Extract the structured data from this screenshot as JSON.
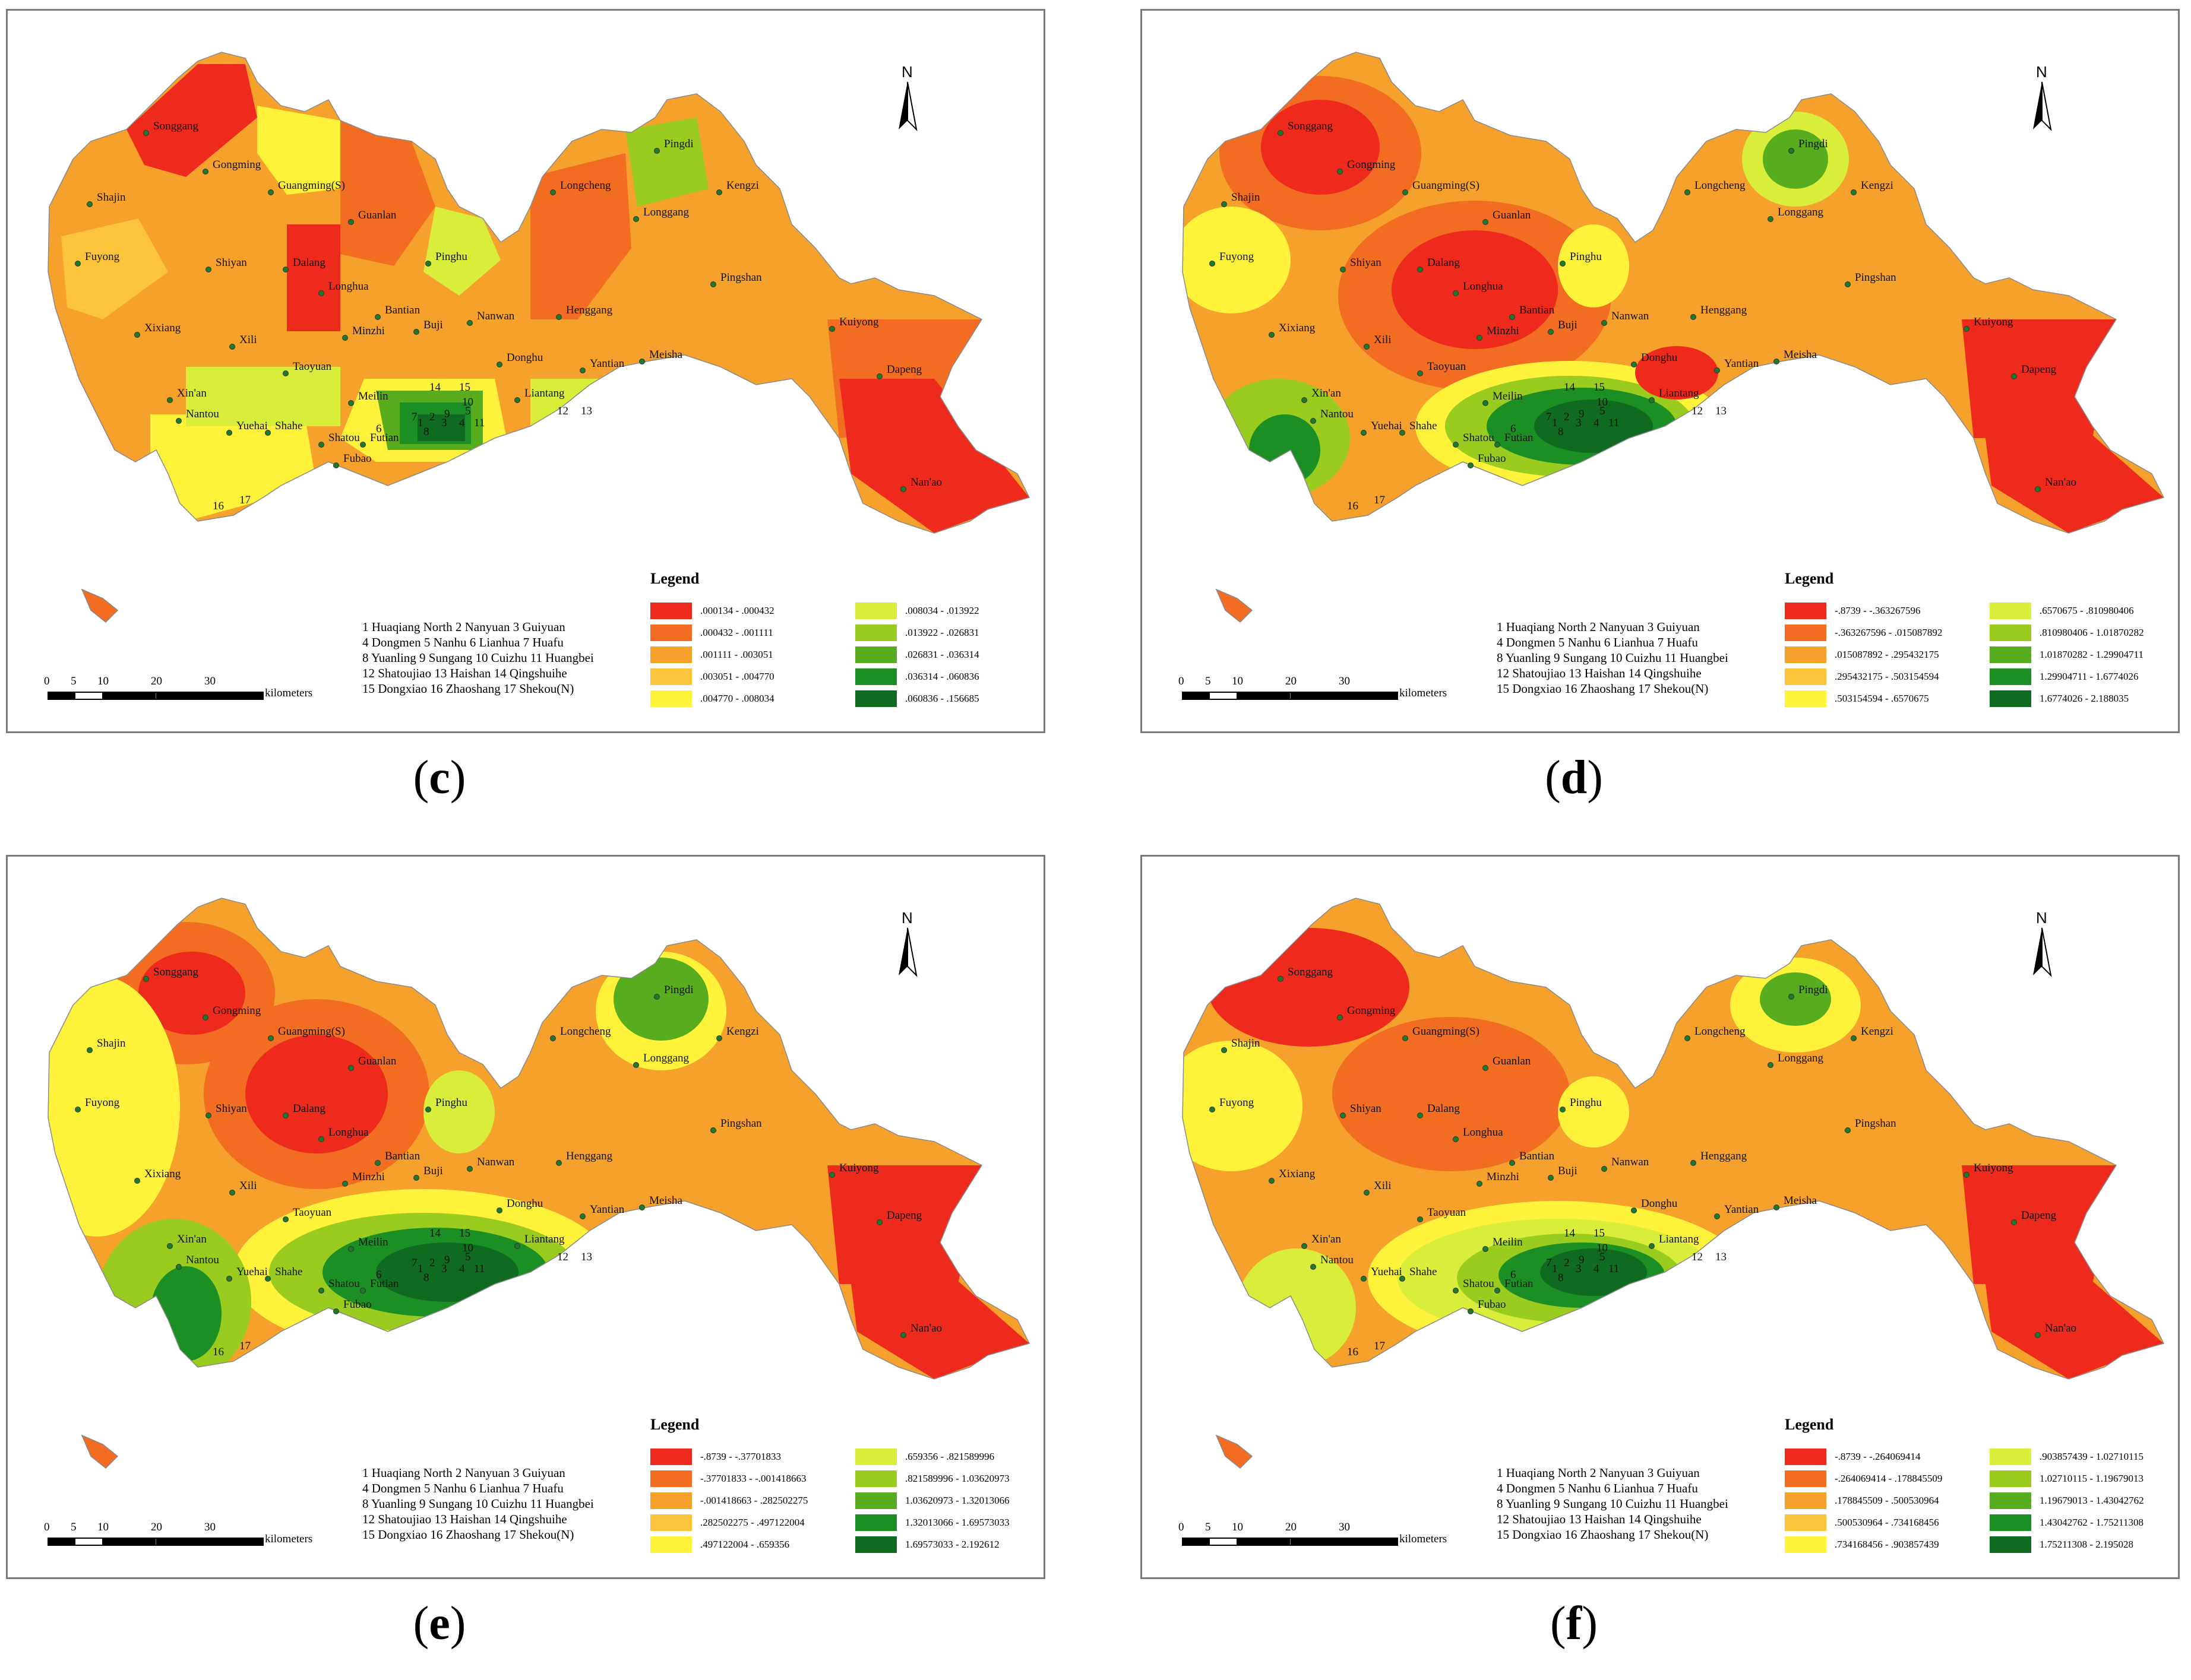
{
  "panels": [
    {
      "id": "c",
      "label": "c",
      "legend_title": "Legend",
      "legend_items": [
        {
          "range": ".000134  -  .000432",
          "color": "#ee2a1c"
        },
        {
          "range": ".000432  -  .001111",
          "color": "#f26d21"
        },
        {
          "range": ".001111  -  .003051",
          "color": "#f5a12c"
        },
        {
          "range": ".003051  -  .004770",
          "color": "#fcc43a"
        },
        {
          "range": ".004770  -  .008034",
          "color": "#fef23a"
        },
        {
          "range": ".008034  -  .013922",
          "color": "#d9ee3a"
        },
        {
          "range": ".013922  -  .026831",
          "color": "#99cc1e"
        },
        {
          "range": ".026831  -  .036314",
          "color": "#57ad1e"
        },
        {
          "range": ".036314  -  .060836",
          "color": "#1c8f24"
        },
        {
          "range": ".060836  -  .156685",
          "color": "#0e6b1f"
        }
      ]
    },
    {
      "id": "d",
      "label": "d",
      "legend_title": "Legend",
      "legend_items": [
        {
          "range": "-.8739  -  -.363267596",
          "color": "#ee2a1c"
        },
        {
          "range": "-.363267596  -  .015087892",
          "color": "#f26d21"
        },
        {
          "range": ".015087892  -  .295432175",
          "color": "#f5a12c"
        },
        {
          "range": ".295432175  -  .503154594",
          "color": "#fcc43a"
        },
        {
          "range": ".503154594  -  .6570675",
          "color": "#fef23a"
        },
        {
          "range": ".6570675  -  .810980406",
          "color": "#d9ee3a"
        },
        {
          "range": ".810980406  -  1.01870282",
          "color": "#99cc1e"
        },
        {
          "range": "1.01870282  -  1.29904711",
          "color": "#57ad1e"
        },
        {
          "range": "1.29904711  -  1.6774026",
          "color": "#1c8f24"
        },
        {
          "range": "1.6774026  -  2.188035",
          "color": "#0e6b1f"
        }
      ]
    },
    {
      "id": "e",
      "label": "e",
      "legend_title": "Legend",
      "legend_items": [
        {
          "range": "-.8739  -  -.37701833",
          "color": "#ee2a1c"
        },
        {
          "range": "-.37701833  -  -.001418663",
          "color": "#f26d21"
        },
        {
          "range": "-.001418663  -  .282502275",
          "color": "#f5a12c"
        },
        {
          "range": ".282502275  -  .497122004",
          "color": "#fcc43a"
        },
        {
          "range": ".497122004  -  .659356",
          "color": "#fef23a"
        },
        {
          "range": ".659356  -  .821589996",
          "color": "#d9ee3a"
        },
        {
          "range": ".821589996  -  1.03620973",
          "color": "#99cc1e"
        },
        {
          "range": "1.03620973  -  1.32013066",
          "color": "#57ad1e"
        },
        {
          "range": "1.32013066  -  1.69573033",
          "color": "#1c8f24"
        },
        {
          "range": "1.69573033  -  2.192612",
          "color": "#0e6b1f"
        }
      ]
    },
    {
      "id": "f",
      "label": "f",
      "legend_title": "Legend",
      "legend_items": [
        {
          "range": "-.8739  -  -.264069414",
          "color": "#ee2a1c"
        },
        {
          "range": "-.264069414  -  .178845509",
          "color": "#f26d21"
        },
        {
          "range": ".178845509  -  .500530964",
          "color": "#f5a12c"
        },
        {
          "range": ".500530964  -  .734168456",
          "color": "#fcc43a"
        },
        {
          "range": ".734168456  -  .903857439",
          "color": "#fef23a"
        },
        {
          "range": ".903857439  -  1.02710115",
          "color": "#d9ee3a"
        },
        {
          "range": "1.02710115  -  1.19679013",
          "color": "#99cc1e"
        },
        {
          "range": "1.19679013  -  1.43042762",
          "color": "#57ad1e"
        },
        {
          "range": "1.43042762  -  1.75211308",
          "color": "#1c8f24"
        },
        {
          "range": "1.75211308  -  2.195028",
          "color": "#0e6b1f"
        }
      ]
    }
  ],
  "station_list": [
    "1 Huaqiang North  2 Nanyuan 3 Guiyuan",
    "4 Dongmen  5 Nanhu  6 Lianhua  7 Huafu",
    "8 Yuanling  9 Sungang  10 Cuizhu  11 Huangbei",
    "12 Shatoujiao  13 Haishan  14 Qingshuihe",
    "15 Dongxiao  16 Zhaoshang  17 Shekou(N)"
  ],
  "scale": {
    "ticks": [
      "0",
      "5",
      "10",
      "20",
      "30"
    ],
    "unit": "kilometers"
  },
  "north_label": "N",
  "place_names": [
    "Songgang",
    "Gongming",
    "Guangming(S)",
    "Shajin",
    "Fuyong",
    "Shiyan",
    "Guanlan",
    "Dalang",
    "Longhua",
    "Xixiang",
    "Xili",
    "Bantian",
    "Minzhi",
    "Buji",
    "Pinghu",
    "Nanwan",
    "Taoyuan",
    "Xin'an",
    "Nantou",
    "Yuehai",
    "Shahe",
    "Meilin",
    "Shatou",
    "Futian",
    "Fubao",
    "Liantang",
    "Donghu",
    "Yantian",
    "Meisha",
    "Henggang",
    "Longgang",
    "Longcheng",
    "Pingdi",
    "Kengzi",
    "Pingshan",
    "Kuiyong",
    "Dapeng",
    "Nan'ao"
  ]
}
